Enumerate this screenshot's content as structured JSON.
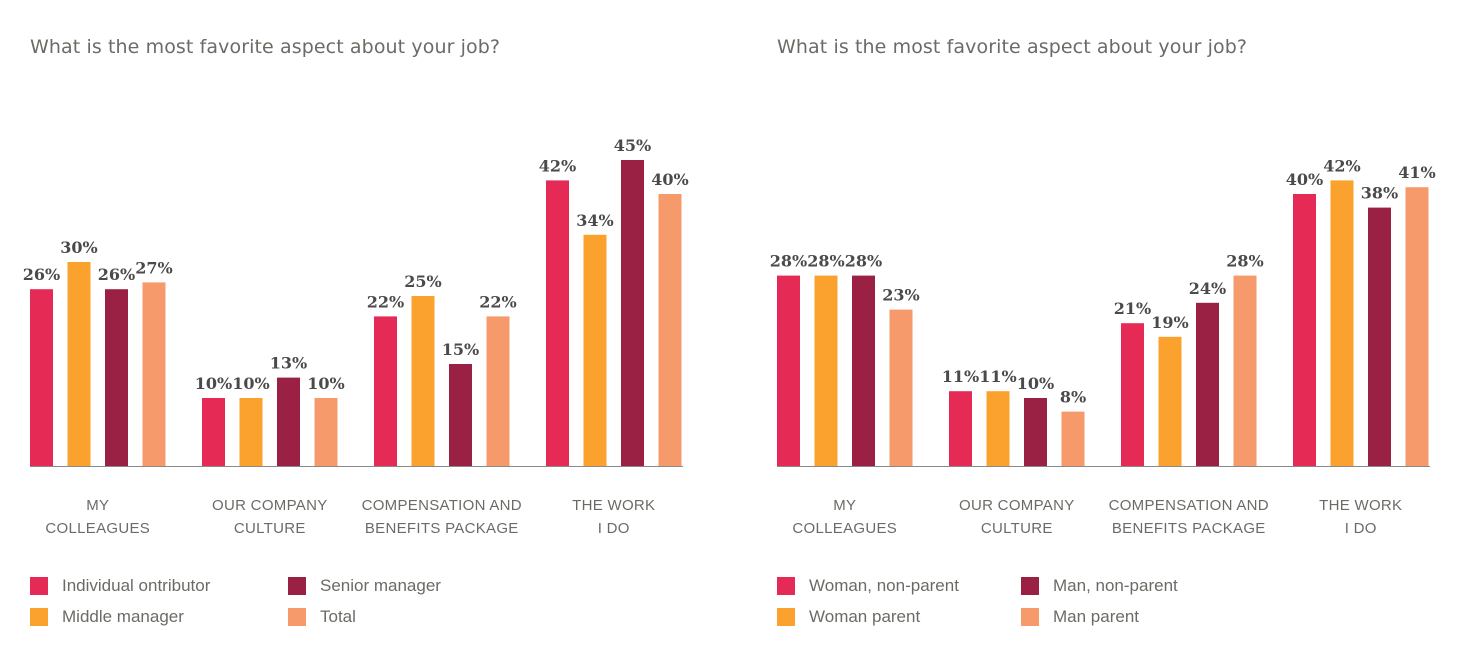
{
  "colors": {
    "pink": "#e42a55",
    "orange": "#fba12d",
    "maroon": "#9a2044",
    "salmon": "#f69a6c",
    "axis": "#8a8a8a"
  },
  "charts": [
    {
      "title": "What is the most favorite aspect about your job?",
      "legend": [
        {
          "label": "Individual ontributor"
        },
        {
          "label": "Senior manager"
        },
        {
          "label": "Middle manager"
        },
        {
          "label": "Total"
        }
      ]
    },
    {
      "title": "What is the most favorite aspect about your job?",
      "legend": [
        {
          "label": "Woman, non-parent"
        },
        {
          "label": "Man, non-parent"
        },
        {
          "label": "Woman parent"
        },
        {
          "label": "Man parent"
        }
      ]
    }
  ],
  "chart_data": [
    {
      "type": "bar",
      "title": "What is the most favorite aspect about your job?",
      "categories": [
        [
          "MY",
          "COLLEAGUES"
        ],
        [
          "OUR COMPANY",
          "CULTURE"
        ],
        [
          "COMPENSATION AND",
          "BENEFITS PACKAGE"
        ],
        [
          "THE WORK",
          "I DO"
        ]
      ],
      "series": [
        {
          "name": "Individual ontributor",
          "color": "#e42a55",
          "values": [
            26,
            10,
            22,
            42
          ]
        },
        {
          "name": "Middle manager",
          "color": "#fba12d",
          "values": [
            30,
            10,
            25,
            34
          ]
        },
        {
          "name": "Senior manager",
          "color": "#9a2044",
          "values": [
            26,
            13,
            15,
            45
          ]
        },
        {
          "name": "Total",
          "color": "#f69a6c",
          "values": [
            27,
            10,
            22,
            40
          ]
        }
      ],
      "value_suffix": "%",
      "ylim": [
        0,
        45
      ],
      "grid": false,
      "legend_position": "bottom"
    },
    {
      "type": "bar",
      "title": "What is the most favorite aspect about your job?",
      "categories": [
        [
          "MY",
          "COLLEAGUES"
        ],
        [
          "OUR COMPANY",
          "CULTURE"
        ],
        [
          "COMPENSATION AND",
          "BENEFITS PACKAGE"
        ],
        [
          "THE WORK",
          "I DO"
        ]
      ],
      "series": [
        {
          "name": "Woman, non-parent",
          "color": "#e42a55",
          "values": [
            28,
            11,
            21,
            40
          ]
        },
        {
          "name": "Woman parent",
          "color": "#fba12d",
          "values": [
            28,
            11,
            19,
            42
          ]
        },
        {
          "name": "Man, non-parent",
          "color": "#9a2044",
          "values": [
            28,
            10,
            24,
            38
          ]
        },
        {
          "name": "Man parent",
          "color": "#f69a6c",
          "values": [
            23,
            8,
            28,
            41
          ]
        }
      ],
      "value_suffix": "%",
      "ylim": [
        0,
        45
      ],
      "grid": false,
      "legend_position": "bottom"
    }
  ]
}
